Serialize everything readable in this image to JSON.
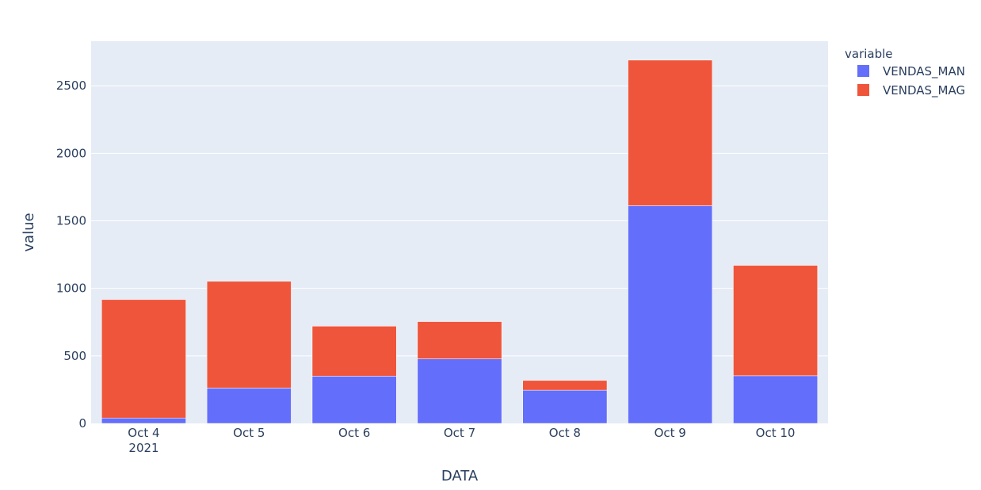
{
  "chart_data": {
    "type": "bar",
    "barmode": "stack",
    "categories": [
      "Oct 4",
      "Oct 5",
      "Oct 6",
      "Oct 7",
      "Oct 8",
      "Oct 9",
      "Oct 10"
    ],
    "year_label": "2021",
    "series": [
      {
        "name": "VENDAS_MAN",
        "color": "#636efa",
        "values": [
          40,
          262,
          350,
          478,
          246,
          1612,
          353
        ]
      },
      {
        "name": "VENDAS_MAG",
        "color": "#ef553b",
        "values": [
          877,
          790,
          370,
          276,
          72,
          1078,
          817
        ]
      }
    ],
    "xlabel": "DATA",
    "ylabel": "value",
    "ylim": [
      0,
      2830
    ],
    "yticks": [
      0,
      500,
      1000,
      1500,
      2000,
      2500
    ],
    "grid": true,
    "legend_title": "variable",
    "legend_position": "top-right",
    "plot_bgcolor": "#e5ecf6"
  }
}
